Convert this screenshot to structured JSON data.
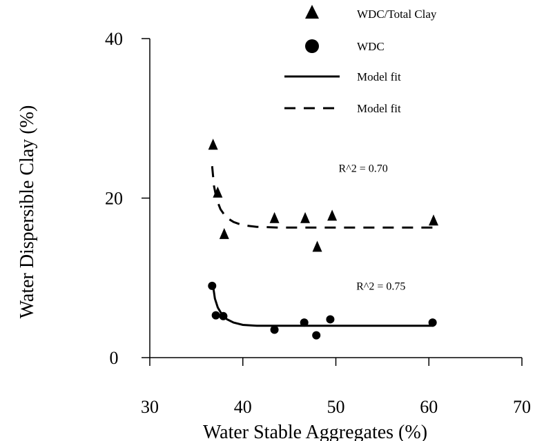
{
  "chart_data": {
    "type": "scatter",
    "xlabel": "Water Stable Aggregates (%)",
    "ylabel": "Water Dispersible Clay (%)",
    "xlim": [
      30,
      70
    ],
    "ylim": [
      0,
      40
    ],
    "xticks": [
      30,
      40,
      50,
      60,
      70
    ],
    "yticks": [
      0,
      20,
      40
    ],
    "grid": false,
    "legend_position": "top-right",
    "series": [
      {
        "name": "WDC/Total Clay",
        "marker": "triangle",
        "x": [
          36.8,
          37.3,
          38.0,
          43.4,
          46.7,
          48.0,
          49.6,
          60.5
        ],
        "y": [
          26.5,
          20.5,
          15.3,
          17.3,
          17.3,
          13.7,
          17.6,
          17.0
        ]
      },
      {
        "name": "WDC",
        "marker": "circle",
        "x": [
          36.7,
          37.1,
          37.9,
          43.4,
          46.6,
          47.9,
          49.4,
          60.4
        ],
        "y": [
          9.0,
          5.3,
          5.2,
          3.5,
          4.4,
          2.8,
          4.8,
          4.4
        ]
      },
      {
        "name": "Model fit",
        "style": "solid",
        "x": [
          36.8,
          37.0,
          37.3,
          37.7,
          38.3,
          39.0,
          40.0,
          41.5,
          44.0,
          50.0,
          60.5
        ],
        "y": [
          9.0,
          7.4,
          6.3,
          5.5,
          4.8,
          4.4,
          4.1,
          4.0,
          4.0,
          4.0,
          4.0
        ]
      },
      {
        "name": "Model fit",
        "style": "dashed",
        "x": [
          36.7,
          36.9,
          37.2,
          37.6,
          38.2,
          39.0,
          40.0,
          41.5,
          44.0,
          50.0,
          60.5
        ],
        "y": [
          24.0,
          21.5,
          19.8,
          18.6,
          17.6,
          17.0,
          16.6,
          16.4,
          16.3,
          16.3,
          16.3
        ]
      }
    ],
    "annotations": [
      {
        "text": "R^2 = 0.70",
        "x": 50.3,
        "y": 23.3
      },
      {
        "text": "R^2 = 0.75",
        "x": 52.2,
        "y": 8.5
      }
    ]
  }
}
